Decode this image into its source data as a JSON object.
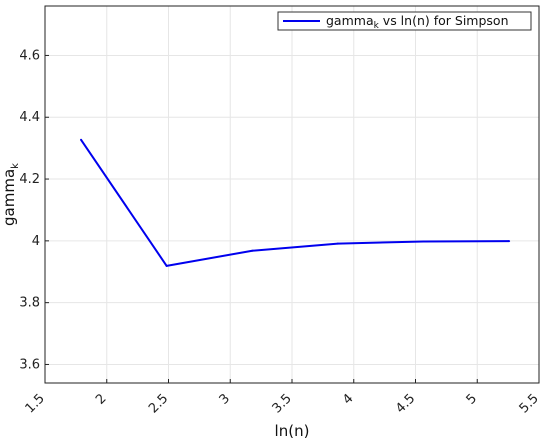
{
  "chart_data": {
    "type": "line",
    "title": "",
    "xlabel": "ln(n)",
    "ylabel": {
      "base": "gamma",
      "sub": "k"
    },
    "xlim": [
      1.5,
      5.5
    ],
    "ylim": [
      3.54,
      4.76
    ],
    "xticks": [
      "1.5",
      "2",
      "2.5",
      "3",
      "3.5",
      "4",
      "4.5",
      "5",
      "5.5"
    ],
    "yticks": [
      "3.6",
      "3.8",
      "4",
      "4.2",
      "4.4",
      "4.6"
    ],
    "grid": true,
    "legend_position": "top-right",
    "series": [
      {
        "name": {
          "base": "gamma",
          "sub": "k",
          "rest": " vs ln(n) for Simpson"
        },
        "color": "#0000ee",
        "x": [
          1.7918,
          2.4849,
          3.1781,
          3.8712,
          4.5643,
          5.2575
        ],
        "y": [
          4.327,
          3.919,
          3.968,
          3.991,
          3.998,
          3.999
        ]
      }
    ]
  }
}
